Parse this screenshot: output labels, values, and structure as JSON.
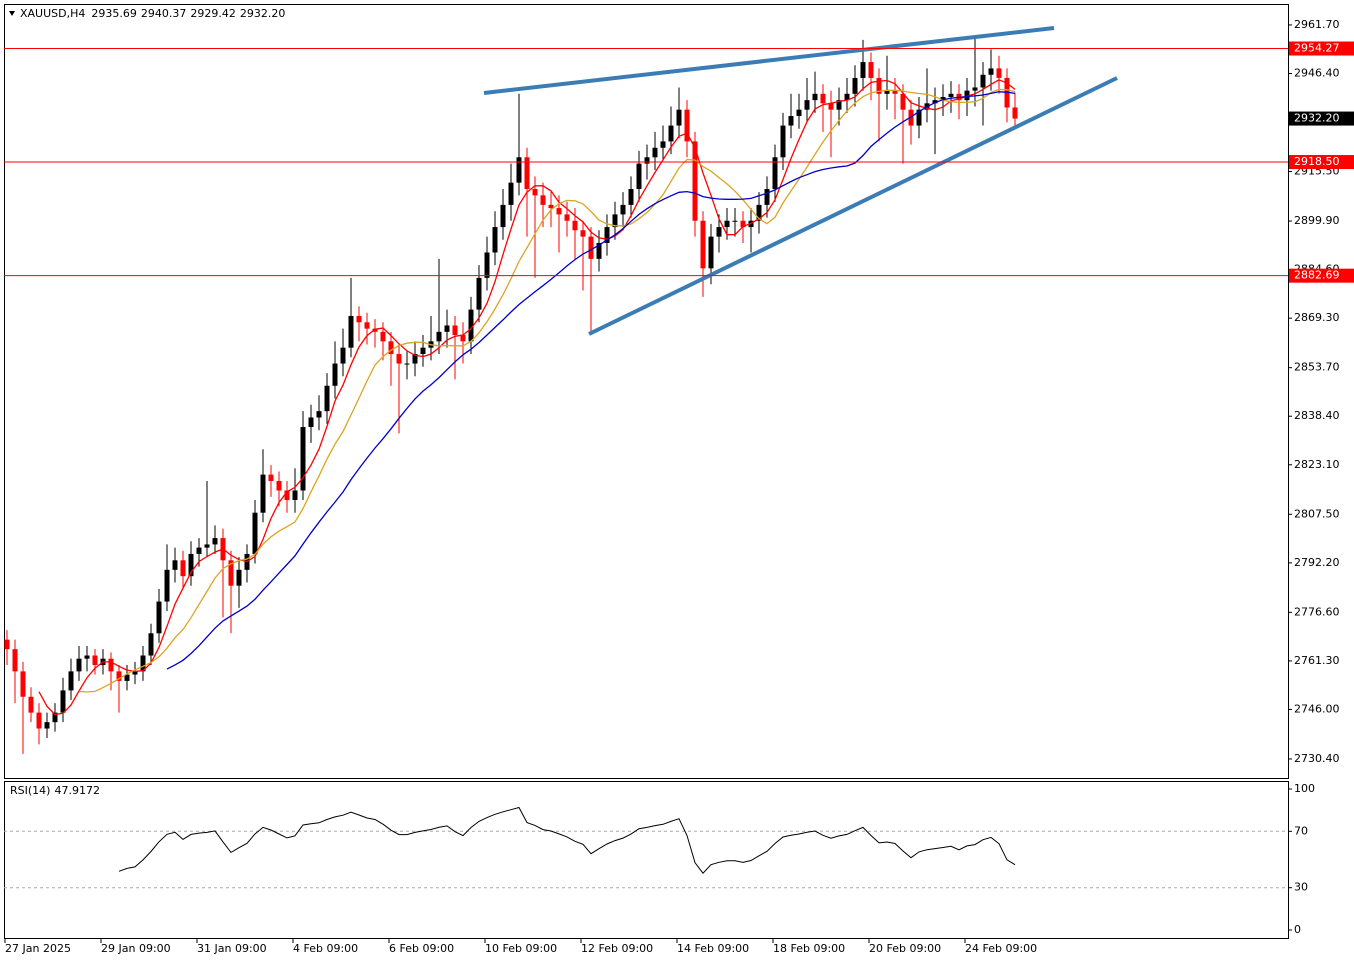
{
  "chart_data": {
    "type": "candlestick",
    "symbol": "XAUUSD,H4",
    "header_labels": [
      "2935.69",
      "2940.37",
      "2929.42",
      "2932.20"
    ],
    "categories": [
      "27 Jan 2025",
      null,
      null,
      null,
      null,
      null,
      null,
      null,
      null,
      null,
      null,
      null,
      "29 Jan 09:00",
      null,
      null,
      null,
      null,
      null,
      null,
      null,
      null,
      null,
      null,
      null,
      "31 Jan 09:00",
      null,
      null,
      null,
      null,
      null,
      null,
      null,
      null,
      null,
      null,
      null,
      "4 Feb 09:00",
      null,
      null,
      null,
      null,
      null,
      null,
      null,
      null,
      null,
      null,
      null,
      "6 Feb 09:00",
      null,
      null,
      null,
      null,
      null,
      null,
      null,
      null,
      null,
      null,
      null,
      "10 Feb 09:00",
      null,
      null,
      null,
      null,
      null,
      null,
      null,
      null,
      null,
      null,
      null,
      "12 Feb 09:00",
      null,
      null,
      null,
      null,
      null,
      null,
      null,
      null,
      null,
      null,
      null,
      "14 Feb 09:00",
      null,
      null,
      null,
      null,
      null,
      null,
      null,
      null,
      null,
      null,
      null,
      "18 Feb 09:00",
      null,
      null,
      null,
      null,
      null,
      null,
      null,
      null,
      null,
      null,
      null,
      "20 Feb 09:00",
      null,
      null,
      null,
      null,
      null,
      null,
      null,
      null,
      null,
      null,
      null,
      "24 Feb 09:00",
      null,
      null,
      null,
      null,
      null,
      null
    ],
    "open": [
      2768,
      2765,
      2758,
      2750,
      2745,
      2740,
      2742,
      2745,
      2752,
      2758,
      2762,
      2763,
      2760,
      2762,
      2758,
      2755,
      2757,
      2758,
      2763,
      2770,
      2780,
      2790,
      2793,
      2788,
      2795,
      2797,
      2798,
      2800,
      2793,
      2785,
      2790,
      2795,
      2808,
      2820,
      2818,
      2815,
      2812,
      2815,
      2835,
      2838,
      2840,
      2848,
      2855,
      2860,
      2870,
      2868,
      2866,
      2865,
      2862,
      2858,
      2855,
      2855,
      2858,
      2860,
      2862,
      2865,
      2867,
      2864,
      2862,
      2872,
      2882,
      2890,
      2898,
      2905,
      2912,
      2920,
      2910,
      2908,
      2905,
      2904,
      2902,
      2900,
      2897,
      2895,
      2888,
      2893,
      2898,
      2902,
      2905,
      2910,
      2918,
      2920,
      2923,
      2925,
      2930,
      2935,
      2925,
      2900,
      2885,
      2895,
      2898,
      2900,
      2900,
      2898,
      2900,
      2905,
      2910,
      2920,
      2930,
      2933,
      2935,
      2938,
      2940,
      2937,
      2935,
      2938,
      2940,
      2945,
      2950,
      2945,
      2940,
      2941,
      2940,
      2935,
      2930,
      2935,
      2937,
      2938,
      2939,
      2940,
      2938,
      2941,
      2942,
      2946,
      2948,
      2945,
      2935.69
    ],
    "high": [
      2771,
      2768,
      2761,
      2753,
      2748,
      2745,
      2748,
      2756,
      2762,
      2766,
      2766,
      2765,
      2765,
      2764,
      2760,
      2760,
      2761,
      2766,
      2773,
      2784,
      2798,
      2797,
      2796,
      2799,
      2800,
      2818,
      2804,
      2803,
      2796,
      2794,
      2798,
      2812,
      2828,
      2823,
      2821,
      2818,
      2822,
      2840,
      2842,
      2845,
      2852,
      2862,
      2866,
      2882,
      2873,
      2871,
      2869,
      2868,
      2865,
      2861,
      2859,
      2862,
      2864,
      2870,
      2888,
      2872,
      2870,
      2868,
      2876,
      2886,
      2895,
      2903,
      2910,
      2918,
      2940,
      2923,
      2914,
      2912,
      2909,
      2908,
      2906,
      2904,
      2900,
      2898,
      2897,
      2902,
      2906,
      2909,
      2914,
      2922,
      2924,
      2928,
      2930,
      2936,
      2942,
      2938,
      2928,
      2903,
      2899,
      2902,
      2904,
      2904,
      2903,
      2904,
      2909,
      2914,
      2924,
      2934,
      2940,
      2940,
      2945,
      2947,
      2943,
      2941,
      2942,
      2945,
      2949,
      2957,
      2953,
      2948,
      2952,
      2945,
      2943,
      2938,
      2939,
      2948,
      2942,
      2943,
      2944,
      2943,
      2945,
      2958,
      2950,
      2954,
      2952,
      2948,
      2940.37
    ],
    "low": [
      2760,
      2748,
      2732,
      2742,
      2735,
      2737,
      2739,
      2742,
      2749,
      2755,
      2758,
      2757,
      2757,
      2752,
      2745,
      2752,
      2754,
      2755,
      2760,
      2767,
      2777,
      2786,
      2784,
      2785,
      2791,
      2794,
      2795,
      2775,
      2770,
      2778,
      2786,
      2792,
      2805,
      2813,
      2810,
      2808,
      2808,
      2812,
      2830,
      2834,
      2836,
      2844,
      2851,
      2857,
      2862,
      2861,
      2860,
      2856,
      2848,
      2833,
      2850,
      2851,
      2854,
      2856,
      2858,
      2860,
      2850,
      2855,
      2858,
      2868,
      2878,
      2886,
      2894,
      2900,
      2908,
      2895,
      2882,
      2898,
      2898,
      2890,
      2895,
      2888,
      2878,
      2864,
      2884,
      2889,
      2894,
      2898,
      2901,
      2906,
      2913,
      2916,
      2919,
      2921,
      2926,
      2920,
      2895,
      2876,
      2880,
      2890,
      2894,
      2895,
      2893,
      2890,
      2896,
      2901,
      2906,
      2916,
      2926,
      2929,
      2931,
      2934,
      2928,
      2920,
      2930,
      2934,
      2936,
      2941,
      2938,
      2925,
      2935,
      2932,
      2918,
      2924,
      2926,
      2931,
      2921,
      2933,
      2934,
      2932,
      2933,
      2936,
      2930,
      2941,
      2940,
      2931,
      2929.42
    ],
    "close": [
      2765,
      2758,
      2750,
      2745,
      2740,
      2742,
      2745,
      2752,
      2758,
      2762,
      2763,
      2760,
      2762,
      2758,
      2755,
      2757,
      2758,
      2763,
      2770,
      2780,
      2790,
      2793,
      2788,
      2795,
      2797,
      2798,
      2800,
      2793,
      2785,
      2790,
      2795,
      2808,
      2820,
      2818,
      2815,
      2812,
      2815,
      2835,
      2838,
      2840,
      2848,
      2855,
      2860,
      2870,
      2868,
      2866,
      2865,
      2862,
      2858,
      2855,
      2855,
      2858,
      2860,
      2862,
      2865,
      2867,
      2864,
      2862,
      2872,
      2882,
      2890,
      2898,
      2905,
      2912,
      2920,
      2910,
      2908,
      2905,
      2904,
      2902,
      2900,
      2897,
      2895,
      2888,
      2893,
      2898,
      2902,
      2905,
      2910,
      2918,
      2920,
      2923,
      2925,
      2930,
      2935,
      2925,
      2900,
      2885,
      2895,
      2898,
      2900,
      2900,
      2898,
      2900,
      2905,
      2910,
      2920,
      2930,
      2933,
      2935,
      2938,
      2940,
      2937,
      2935,
      2938,
      2940,
      2945,
      2950,
      2945,
      2940,
      2941,
      2940,
      2935,
      2930,
      2935,
      2937,
      2938,
      2939,
      2940,
      2938,
      2941,
      2942,
      2946,
      2948,
      2945,
      2935.69,
      2932.2
    ],
    "up_color": "#000000",
    "down_color": "#ff0000",
    "ylim": [
      2724.4,
      2968.3
    ],
    "yticks": [
      {
        "value": 2961.7,
        "label": "2961.70"
      },
      {
        "value": 2946.4,
        "label": "2946.40"
      },
      {
        "value": 2915.5,
        "label": "2915.50"
      },
      {
        "value": 2899.9,
        "label": "2899.90"
      },
      {
        "value": 2884.6,
        "label": "2884.60"
      },
      {
        "value": 2869.3,
        "label": "2869.30"
      },
      {
        "value": 2853.7,
        "label": "2853.70"
      },
      {
        "value": 2838.4,
        "label": "2838.40"
      },
      {
        "value": 2823.1,
        "label": "2823.10"
      },
      {
        "value": 2807.5,
        "label": "2807.50"
      },
      {
        "value": 2792.2,
        "label": "2792.20"
      },
      {
        "value": 2776.6,
        "label": "2776.60"
      },
      {
        "value": 2761.3,
        "label": "2761.30"
      },
      {
        "value": 2746,
        "label": "2746.00"
      },
      {
        "value": 2730.4,
        "label": "2730.40"
      }
    ],
    "last_price_label": "2932.20",
    "levels": [
      {
        "value": 2954.27,
        "label": "2954.27"
      },
      {
        "value": 2918.5,
        "label": "2918.50"
      },
      {
        "value": 2882.69,
        "label": "2882.69"
      }
    ],
    "level_color": "#ff0000",
    "moving_averages": [
      {
        "period": 5,
        "color": "#ff0000"
      },
      {
        "period": 10,
        "color": "#daa520"
      },
      {
        "period": 21,
        "color": "#0000c8"
      }
    ],
    "rsi": {
      "label": "RSI(14)",
      "value": 47.9172,
      "ylim": [
        0,
        100
      ],
      "yticks": [
        100,
        70,
        30,
        0
      ],
      "levels": [
        70,
        30
      ]
    }
  }
}
